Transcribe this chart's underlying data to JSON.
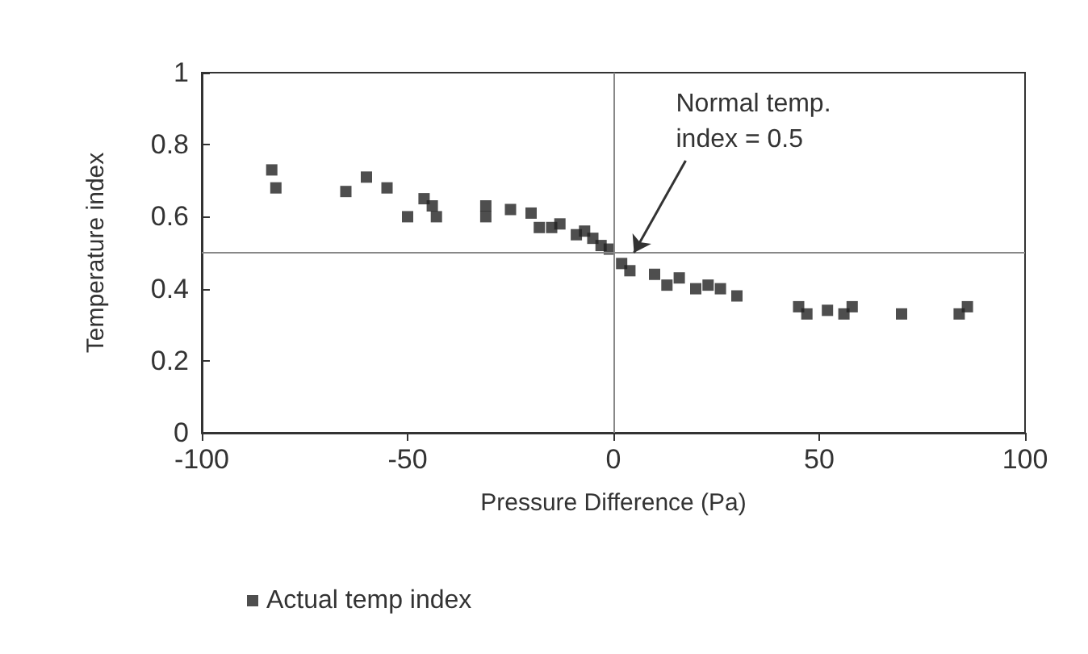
{
  "chart_data": {
    "type": "scatter",
    "xlabel": "Pressure Difference (Pa)",
    "ylabel": "Temperature index",
    "x": [
      -83,
      -82,
      -65,
      -60,
      -55,
      -50,
      -46,
      -44,
      -43,
      -31,
      -31,
      -25,
      -20,
      -18,
      -15,
      -13,
      -9,
      -7,
      -5,
      -3,
      -1,
      2,
      4,
      10,
      13,
      16,
      20,
      23,
      26,
      30,
      45,
      47,
      52,
      56,
      58,
      70,
      84,
      86
    ],
    "series": [
      {
        "name": "Actual temp index",
        "color": "#222222",
        "values": [
          0.73,
          0.68,
          0.67,
          0.71,
          0.68,
          0.6,
          0.65,
          0.63,
          0.6,
          0.63,
          0.6,
          0.62,
          0.61,
          0.57,
          0.57,
          0.58,
          0.55,
          0.56,
          0.54,
          0.52,
          0.51,
          0.47,
          0.45,
          0.44,
          0.41,
          0.43,
          0.4,
          0.41,
          0.4,
          0.38,
          0.35,
          0.33,
          0.34,
          0.33,
          0.35,
          0.33,
          0.33,
          0.35
        ]
      }
    ],
    "xlim": [
      -100,
      100
    ],
    "xticks": [
      -100,
      -50,
      0,
      50,
      100
    ],
    "ylim": [
      0,
      1
    ],
    "yticks": [
      0,
      0.2,
      0.4,
      0.6,
      0.8,
      1
    ],
    "ref_lines": [
      {
        "axis": "y",
        "value": 0.5,
        "color": "#888888"
      },
      {
        "axis": "x",
        "value": 0,
        "color": "#888888"
      }
    ],
    "annotations": [
      {
        "text": "Normal temp.\nindex = 0.5",
        "x": 5,
        "y": 0.5
      }
    ],
    "legend": "bottom left",
    "marker": "square",
    "grid": false
  }
}
